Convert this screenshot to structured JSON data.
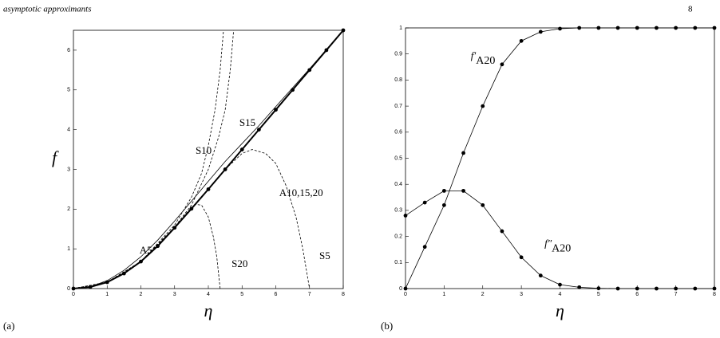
{
  "header": {
    "title": "asymptotic approximants",
    "page": "8"
  },
  "panel_labels": [
    "(a)",
    "(b)"
  ],
  "chart_data": [
    {
      "type": "line",
      "xlabel": "η",
      "ylabel": "f",
      "xlim": [
        0,
        8
      ],
      "ylim": [
        0,
        6.5
      ],
      "xticks": [
        0,
        1,
        2,
        3,
        4,
        5,
        6,
        7,
        8
      ],
      "yticks": [
        0,
        1,
        2,
        3,
        4,
        5,
        6
      ],
      "series": [
        {
          "line": "solid",
          "marker": true,
          "width": 2,
          "color": "#000",
          "x": [
            0,
            0.5,
            1,
            1.5,
            2,
            2.5,
            3,
            3.5,
            4,
            4.5,
            5,
            5.5,
            6,
            6.5,
            7,
            7.5,
            8
          ],
          "values": [
            0,
            0.04,
            0.16,
            0.38,
            0.68,
            1.07,
            1.53,
            2.01,
            2.5,
            3.0,
            3.5,
            4.0,
            4.5,
            5.0,
            5.5,
            6.0,
            6.5
          ]
        },
        {
          "line": "solid",
          "marker": false,
          "width": 0.8,
          "color": "#000",
          "x": [
            0,
            0.5,
            1,
            1.5,
            2,
            2.5,
            3,
            3.5,
            4,
            4.5,
            5,
            5.5,
            6,
            7,
            8
          ],
          "values": [
            0,
            0.05,
            0.2,
            0.46,
            0.8,
            1.22,
            1.7,
            2.2,
            2.7,
            3.2,
            3.65,
            4.1,
            4.58,
            5.53,
            6.5
          ]
        },
        {
          "line": "dashed",
          "marker": false,
          "width": 0.8,
          "color": "#000",
          "x": [
            0,
            1,
            2,
            3,
            3.5,
            3.8,
            4,
            4.2,
            4.35,
            4.45
          ],
          "values": [
            0,
            0.16,
            0.68,
            1.6,
            2.3,
            2.9,
            3.6,
            4.5,
            5.5,
            6.5
          ]
        },
        {
          "line": "dashed",
          "marker": false,
          "width": 0.8,
          "color": "#000",
          "x": [
            0,
            1,
            2,
            3,
            3.5,
            4,
            4.3,
            4.5,
            4.65,
            4.75
          ],
          "values": [
            0,
            0.16,
            0.68,
            1.55,
            2.1,
            3.0,
            3.8,
            4.5,
            5.5,
            6.5
          ]
        },
        {
          "line": "dashed",
          "marker": false,
          "width": 0.8,
          "color": "#000",
          "x": [
            0,
            1,
            2,
            3,
            3.4,
            3.6,
            3.8,
            4,
            4.15,
            4.25,
            4.35
          ],
          "values": [
            0,
            0.16,
            0.68,
            1.53,
            1.95,
            2.12,
            2.1,
            1.8,
            1.3,
            0.8,
            0
          ]
        },
        {
          "line": "dashed",
          "marker": false,
          "width": 0.8,
          "color": "#000",
          "x": [
            0,
            1,
            2,
            3,
            4,
            4.5,
            5,
            5.3,
            5.7,
            6,
            6.3,
            6.6,
            6.8,
            7
          ],
          "values": [
            0,
            0.16,
            0.68,
            1.53,
            2.5,
            3.0,
            3.4,
            3.5,
            3.4,
            3.15,
            2.6,
            1.8,
            1.0,
            0
          ]
        }
      ],
      "annotations": [
        {
          "text": "S10",
          "x": 3.62,
          "y": 3.45
        },
        {
          "text": "S15",
          "x": 4.92,
          "y": 4.15
        },
        {
          "text": "A10,15,20",
          "x": 6.1,
          "y": 2.39
        },
        {
          "text": "A5",
          "x": 1.96,
          "y": 0.94
        },
        {
          "text": "S20",
          "x": 4.69,
          "y": 0.6
        },
        {
          "text": "S5",
          "x": 7.29,
          "y": 0.8
        }
      ]
    },
    {
      "type": "line",
      "xlabel": "η",
      "xlim": [
        0,
        8
      ],
      "ylim": [
        0,
        1
      ],
      "xticks": [
        0,
        1,
        2,
        3,
        4,
        5,
        6,
        7,
        8
      ],
      "yticks": [
        0,
        0.1,
        0.2,
        0.3,
        0.4,
        0.5,
        0.6,
        0.7,
        0.8,
        0.9,
        1
      ],
      "series": [
        {
          "line": "solid",
          "marker": true,
          "width": 0.8,
          "color": "#000",
          "x": [
            0,
            0.5,
            1,
            1.5,
            2,
            2.5,
            3,
            3.5,
            4,
            4.5,
            5,
            5.5,
            6,
            6.5,
            7,
            7.5,
            8
          ],
          "values": [
            0,
            0.16,
            0.32,
            0.52,
            0.7,
            0.86,
            0.95,
            0.985,
            0.997,
            1,
            1,
            1,
            1,
            1,
            1,
            1,
            1
          ]
        },
        {
          "line": "solid",
          "marker": true,
          "width": 0.8,
          "color": "#000",
          "x": [
            0,
            0.5,
            1,
            1.5,
            2,
            2.5,
            3,
            3.5,
            4,
            4.5,
            5,
            5.5,
            6,
            6.5,
            7,
            7.5,
            8
          ],
          "values": [
            0.28,
            0.33,
            0.375,
            0.375,
            0.32,
            0.22,
            0.12,
            0.05,
            0.015,
            0.005,
            0.001,
            0,
            0,
            0,
            0,
            0,
            0
          ]
        }
      ],
      "annotations": [
        {
          "text": "f′",
          "sub": "A20",
          "x": 1.69,
          "y": 0.89
        },
        {
          "text": "f″",
          "sub": "A20",
          "x": 3.6,
          "y": 0.17
        }
      ]
    }
  ]
}
